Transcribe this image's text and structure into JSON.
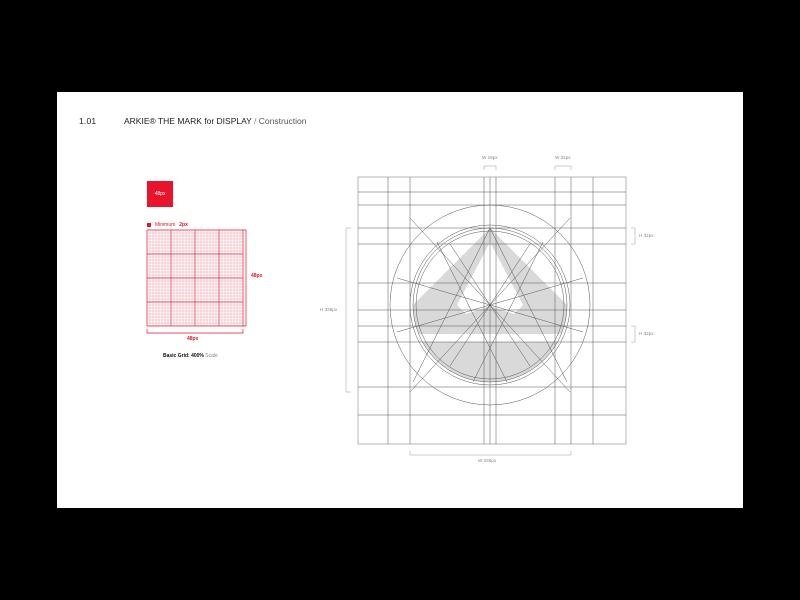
{
  "header": {
    "number": "1.01",
    "title": "ARKIE® THE MARK for DISPLAY",
    "separator": "/",
    "subtitle": "Construction"
  },
  "left_panel": {
    "chip_label": "48px",
    "minimum_label": "Minimum",
    "minimum_value": "2px",
    "grid_height_label": "48px",
    "grid_width_label": "48px",
    "caption_bold": "Basic Grid",
    "caption_scale": ": 400%",
    "caption_suffix": "Scale"
  },
  "construction": {
    "top_dim_1": "W 19px",
    "top_dim_2": "W 32px",
    "right_dim_1": "H 32px",
    "right_dim_2": "H 32px",
    "left_dim": "H 336px",
    "bottom_dim": "W 336px"
  },
  "colors": {
    "accent_red": "#e8142c",
    "grid_red": "#f08a96",
    "fill_gray": "#d9d9d9",
    "line_gray": "#555555"
  }
}
